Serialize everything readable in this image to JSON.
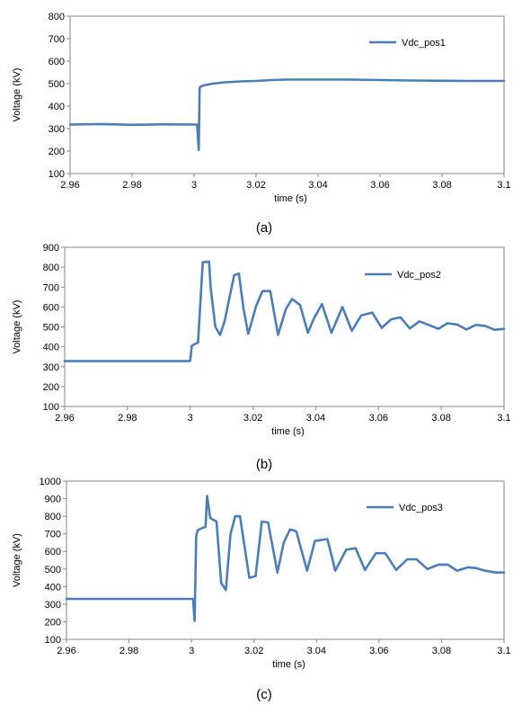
{
  "figure": {
    "panels": [
      {
        "caption": "(a)"
      },
      {
        "caption": "(b)"
      },
      {
        "caption": "(c)"
      }
    ]
  },
  "chart_data": [
    {
      "type": "line",
      "title": "",
      "xlabel": "time (s)",
      "ylabel": "Voltage (kV)",
      "xlim": [
        2.96,
        3.1
      ],
      "ylim": [
        100,
        800
      ],
      "xticks": [
        "2.96",
        "2.98",
        "3",
        "3.02",
        "3.04",
        "3.06",
        "3.08",
        "3.1"
      ],
      "yticks": [
        "100",
        "200",
        "300",
        "400",
        "500",
        "600",
        "700",
        "800"
      ],
      "grid": false,
      "legend_position": "top-right",
      "series": [
        {
          "name": "Vdc_pos1",
          "color": "#4a7ebb",
          "x": [
            2.96,
            2.97,
            2.98,
            2.99,
            3.0,
            3.001,
            3.0015,
            3.0018,
            3.002,
            3.003,
            3.006,
            3.01,
            3.015,
            3.02,
            3.025,
            3.03,
            3.04,
            3.05,
            3.06,
            3.07,
            3.08,
            3.09,
            3.1
          ],
          "y": [
            318,
            320,
            317,
            319,
            318,
            318,
            205,
            480,
            485,
            492,
            500,
            506,
            510,
            512,
            516,
            518,
            518,
            518,
            516,
            514,
            513,
            512,
            512
          ]
        }
      ]
    },
    {
      "type": "line",
      "title": "",
      "xlabel": "time (s)",
      "ylabel": "Voltage (kV)",
      "xlim": [
        2.96,
        3.1
      ],
      "ylim": [
        100,
        900
      ],
      "xticks": [
        "2.96",
        "2.98",
        "3",
        "3.02",
        "3.04",
        "3.06",
        "3.08",
        "3.1"
      ],
      "yticks": [
        "100",
        "200",
        "300",
        "400",
        "500",
        "600",
        "700",
        "800",
        "900"
      ],
      "grid": false,
      "legend_position": "top-right",
      "series": [
        {
          "name": "Vdc_pos2",
          "color": "#4a7ebb",
          "x": [
            2.96,
            2.98,
            2.999,
            3.0,
            3.0005,
            3.002,
            3.0025,
            3.004,
            3.006,
            3.0065,
            3.008,
            3.0095,
            3.011,
            3.014,
            3.0155,
            3.017,
            3.0185,
            3.021,
            3.023,
            3.0255,
            3.028,
            3.0305,
            3.0325,
            3.035,
            3.0375,
            3.0395,
            3.042,
            3.045,
            3.0485,
            3.0515,
            3.0545,
            3.058,
            3.061,
            3.064,
            3.067,
            3.07,
            3.073,
            3.076,
            3.079,
            3.082,
            3.085,
            3.088,
            3.091,
            3.094,
            3.097,
            3.1
          ],
          "y": [
            328,
            328,
            328,
            330,
            405,
            418,
            420,
            825,
            828,
            700,
            500,
            460,
            530,
            760,
            768,
            590,
            465,
            605,
            680,
            680,
            460,
            590,
            640,
            610,
            470,
            545,
            615,
            470,
            600,
            480,
            558,
            572,
            495,
            538,
            548,
            492,
            528,
            510,
            490,
            518,
            512,
            487,
            510,
            505,
            485,
            490
          ]
        }
      ]
    },
    {
      "type": "line",
      "title": "",
      "xlabel": "time (s)",
      "ylabel": "Voltage (kV)",
      "xlim": [
        2.96,
        3.1
      ],
      "ylim": [
        100,
        1000
      ],
      "xticks": [
        "2.96",
        "2.98",
        "3",
        "3.02",
        "3.04",
        "3.06",
        "3.08",
        "3.1"
      ],
      "yticks": [
        "100",
        "200",
        "300",
        "400",
        "500",
        "600",
        "700",
        "800",
        "900",
        "1000"
      ],
      "grid": false,
      "legend_position": "top-right",
      "series": [
        {
          "name": "Vdc_pos3",
          "color": "#4a7ebb",
          "x": [
            2.96,
            2.98,
            2.999,
            3.0005,
            3.001,
            3.0015,
            3.002,
            3.003,
            3.0045,
            3.005,
            3.006,
            3.008,
            3.0095,
            3.011,
            3.0125,
            3.014,
            3.0155,
            3.0185,
            3.0205,
            3.0225,
            3.0245,
            3.0275,
            3.0295,
            3.0315,
            3.0335,
            3.037,
            3.0395,
            3.0435,
            3.046,
            3.0495,
            3.0525,
            3.0555,
            3.059,
            3.062,
            3.0655,
            3.069,
            3.072,
            3.0755,
            3.079,
            3.082,
            3.085,
            3.0885,
            3.091,
            3.094,
            3.0975,
            3.1
          ],
          "y": [
            330,
            330,
            330,
            330,
            205,
            690,
            720,
            730,
            740,
            915,
            790,
            770,
            420,
            380,
            700,
            800,
            800,
            450,
            460,
            770,
            765,
            480,
            650,
            725,
            715,
            490,
            660,
            670,
            490,
            610,
            618,
            495,
            590,
            590,
            495,
            555,
            555,
            500,
            525,
            525,
            490,
            510,
            505,
            490,
            480,
            480
          ]
        }
      ]
    }
  ]
}
